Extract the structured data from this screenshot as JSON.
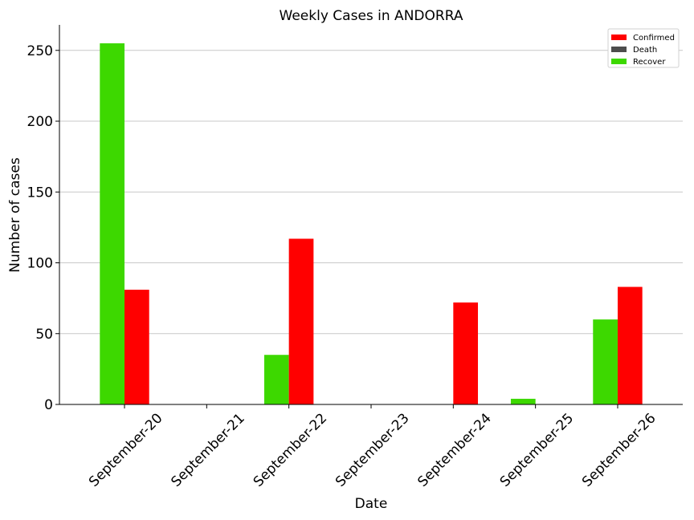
{
  "chart_data": {
    "type": "bar",
    "title": "Weekly Cases in ANDORRA",
    "xlabel": "Date",
    "ylabel": "Number of cases",
    "categories": [
      "September-20",
      "September-21",
      "September-22",
      "September-23",
      "September-24",
      "September-25",
      "September-26"
    ],
    "series": [
      {
        "name": "Recover",
        "color": "#3dd800",
        "values": [
          255,
          0,
          35,
          0,
          0,
          4,
          60
        ]
      },
      {
        "name": "Confirmed",
        "color": "#ff0000",
        "values": [
          81,
          0,
          117,
          0,
          72,
          0,
          83
        ]
      },
      {
        "name": "Death",
        "color": "#4d4d4d",
        "values": [
          0,
          0,
          0,
          0,
          0,
          0,
          0
        ]
      }
    ],
    "legend_order": [
      "Confirmed",
      "Death",
      "Recover"
    ],
    "ylim": [
      0,
      268
    ],
    "yticks": [
      0,
      50,
      100,
      150,
      200,
      250
    ],
    "grid": "horizontal",
    "legend_position": "top-right"
  }
}
